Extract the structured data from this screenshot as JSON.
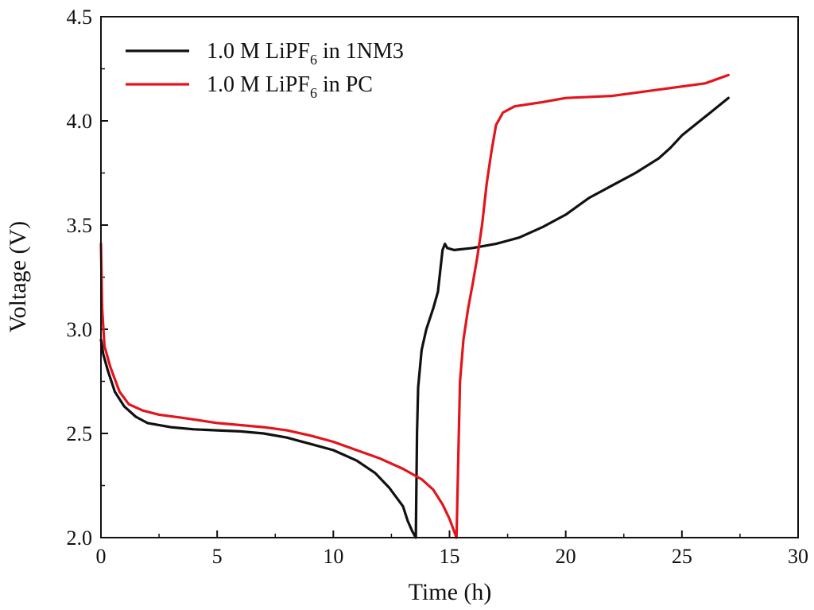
{
  "chart_data": {
    "type": "line",
    "title": "",
    "xlabel": "Time (h)",
    "ylabel": "Voltage (V)",
    "xlim": [
      0,
      30
    ],
    "ylim": [
      2.0,
      4.5
    ],
    "xticks": [
      0,
      5,
      10,
      15,
      20,
      25,
      30
    ],
    "xtick_labels": [
      "0",
      "5",
      "10",
      "15",
      "20",
      "25",
      "30"
    ],
    "yticks": [
      2.0,
      2.5,
      3.0,
      3.5,
      4.0,
      4.5
    ],
    "ytick_labels": [
      "2.0",
      "2.5",
      "3.0",
      "3.5",
      "4.0",
      "4.5"
    ],
    "legend_position": "top-left",
    "series": [
      {
        "name": "1.0 M LiPF6 in 1NM3",
        "legend_parts": {
          "before": "1.0 M LiPF",
          "sub": "6",
          "after": " in 1NM3"
        },
        "color": "#111111",
        "points": [
          [
            0,
            2.95
          ],
          [
            0.1,
            2.88
          ],
          [
            0.3,
            2.8
          ],
          [
            0.6,
            2.7
          ],
          [
            1.0,
            2.63
          ],
          [
            1.5,
            2.58
          ],
          [
            2.0,
            2.55
          ],
          [
            3.0,
            2.53
          ],
          [
            4.0,
            2.52
          ],
          [
            5.0,
            2.515
          ],
          [
            6.0,
            2.51
          ],
          [
            7.0,
            2.5
          ],
          [
            8.0,
            2.48
          ],
          [
            9.0,
            2.45
          ],
          [
            10.0,
            2.42
          ],
          [
            11.0,
            2.37
          ],
          [
            11.8,
            2.31
          ],
          [
            12.4,
            2.24
          ],
          [
            12.8,
            2.18
          ],
          [
            13.0,
            2.15
          ],
          [
            13.2,
            2.08
          ],
          [
            13.4,
            2.03
          ],
          [
            13.55,
            2.0
          ],
          [
            13.6,
            2.5
          ],
          [
            13.65,
            2.72
          ],
          [
            13.8,
            2.9
          ],
          [
            14.0,
            3.0
          ],
          [
            14.3,
            3.1
          ],
          [
            14.5,
            3.18
          ],
          [
            14.6,
            3.28
          ],
          [
            14.7,
            3.38
          ],
          [
            14.8,
            3.41
          ],
          [
            14.9,
            3.39
          ],
          [
            15.2,
            3.38
          ],
          [
            16.0,
            3.39
          ],
          [
            17.0,
            3.41
          ],
          [
            18.0,
            3.44
          ],
          [
            19.0,
            3.49
          ],
          [
            20.0,
            3.55
          ],
          [
            21.0,
            3.63
          ],
          [
            22.0,
            3.69
          ],
          [
            23.0,
            3.75
          ],
          [
            24.0,
            3.82
          ],
          [
            24.5,
            3.87
          ],
          [
            25.0,
            3.93
          ],
          [
            26.0,
            4.02
          ],
          [
            27.0,
            4.11
          ]
        ]
      },
      {
        "name": "1.0 M LiPF6 in PC",
        "legend_parts": {
          "before": "1.0 M LiPF",
          "sub": "6",
          "after": " in PC"
        },
        "color": "#e2141c",
        "points": [
          [
            0,
            3.41
          ],
          [
            0.05,
            3.1
          ],
          [
            0.15,
            2.92
          ],
          [
            0.4,
            2.82
          ],
          [
            0.8,
            2.7
          ],
          [
            1.2,
            2.64
          ],
          [
            1.8,
            2.61
          ],
          [
            2.5,
            2.59
          ],
          [
            3.5,
            2.575
          ],
          [
            5.0,
            2.55
          ],
          [
            6.0,
            2.54
          ],
          [
            7.0,
            2.53
          ],
          [
            8.0,
            2.515
          ],
          [
            9.0,
            2.49
          ],
          [
            10.0,
            2.46
          ],
          [
            11.0,
            2.42
          ],
          [
            12.0,
            2.38
          ],
          [
            13.0,
            2.33
          ],
          [
            13.8,
            2.28
          ],
          [
            14.3,
            2.23
          ],
          [
            14.7,
            2.16
          ],
          [
            15.0,
            2.09
          ],
          [
            15.2,
            2.03
          ],
          [
            15.3,
            2.0
          ],
          [
            15.4,
            2.5
          ],
          [
            15.45,
            2.75
          ],
          [
            15.6,
            2.95
          ],
          [
            15.8,
            3.1
          ],
          [
            16.0,
            3.22
          ],
          [
            16.2,
            3.35
          ],
          [
            16.4,
            3.5
          ],
          [
            16.6,
            3.7
          ],
          [
            16.8,
            3.85
          ],
          [
            17.0,
            3.98
          ],
          [
            17.3,
            4.04
          ],
          [
            17.8,
            4.07
          ],
          [
            19.0,
            4.09
          ],
          [
            20.0,
            4.11
          ],
          [
            22.0,
            4.12
          ],
          [
            24.0,
            4.15
          ],
          [
            26.0,
            4.18
          ],
          [
            27.0,
            4.22
          ]
        ]
      }
    ]
  }
}
